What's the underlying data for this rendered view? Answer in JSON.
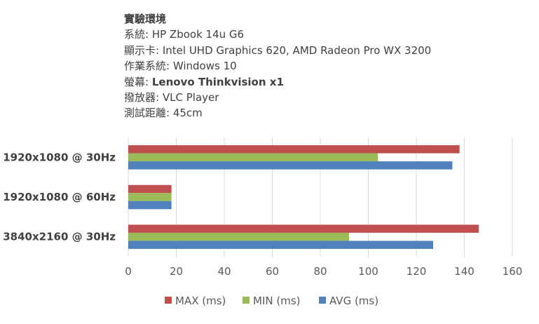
{
  "info": {
    "title": "實驗環境",
    "lines": [
      {
        "key": "系統",
        "value": "HP Zbook 14u G6",
        "bold": false
      },
      {
        "key": "顯示卡",
        "value": "Intel UHD Graphics 620, AMD Radeon Pro WX 3200",
        "bold": false
      },
      {
        "key": "作業系統",
        "value": "Windows 10",
        "bold": false
      },
      {
        "key": "螢幕",
        "value": "Lenovo Thinkvision x1",
        "bold": true
      },
      {
        "key": "撥放器",
        "value": "VLC Player",
        "bold": false
      },
      {
        "key": "測試距離",
        "value": "45cm",
        "bold": false
      }
    ]
  },
  "chart_data": {
    "type": "bar",
    "orientation": "horizontal",
    "categories": [
      "1920x1080 @ 30Hz",
      "1920x1080 @ 60Hz",
      "3840x2160 @ 30Hz"
    ],
    "series": [
      {
        "name": "MAX (ms)",
        "color": "#c0504d",
        "values": [
          138,
          18,
          146
        ]
      },
      {
        "name": "MIN (ms)",
        "color": "#9bbb59",
        "values": [
          104,
          18,
          92
        ]
      },
      {
        "name": "AVG (ms)",
        "color": "#4f81bd",
        "values": [
          135,
          18,
          127
        ]
      }
    ],
    "xlim": [
      0,
      160
    ],
    "xticks": [
      0,
      20,
      40,
      60,
      80,
      100,
      120,
      140,
      160
    ],
    "grid": true,
    "legend_position": "bottom"
  }
}
